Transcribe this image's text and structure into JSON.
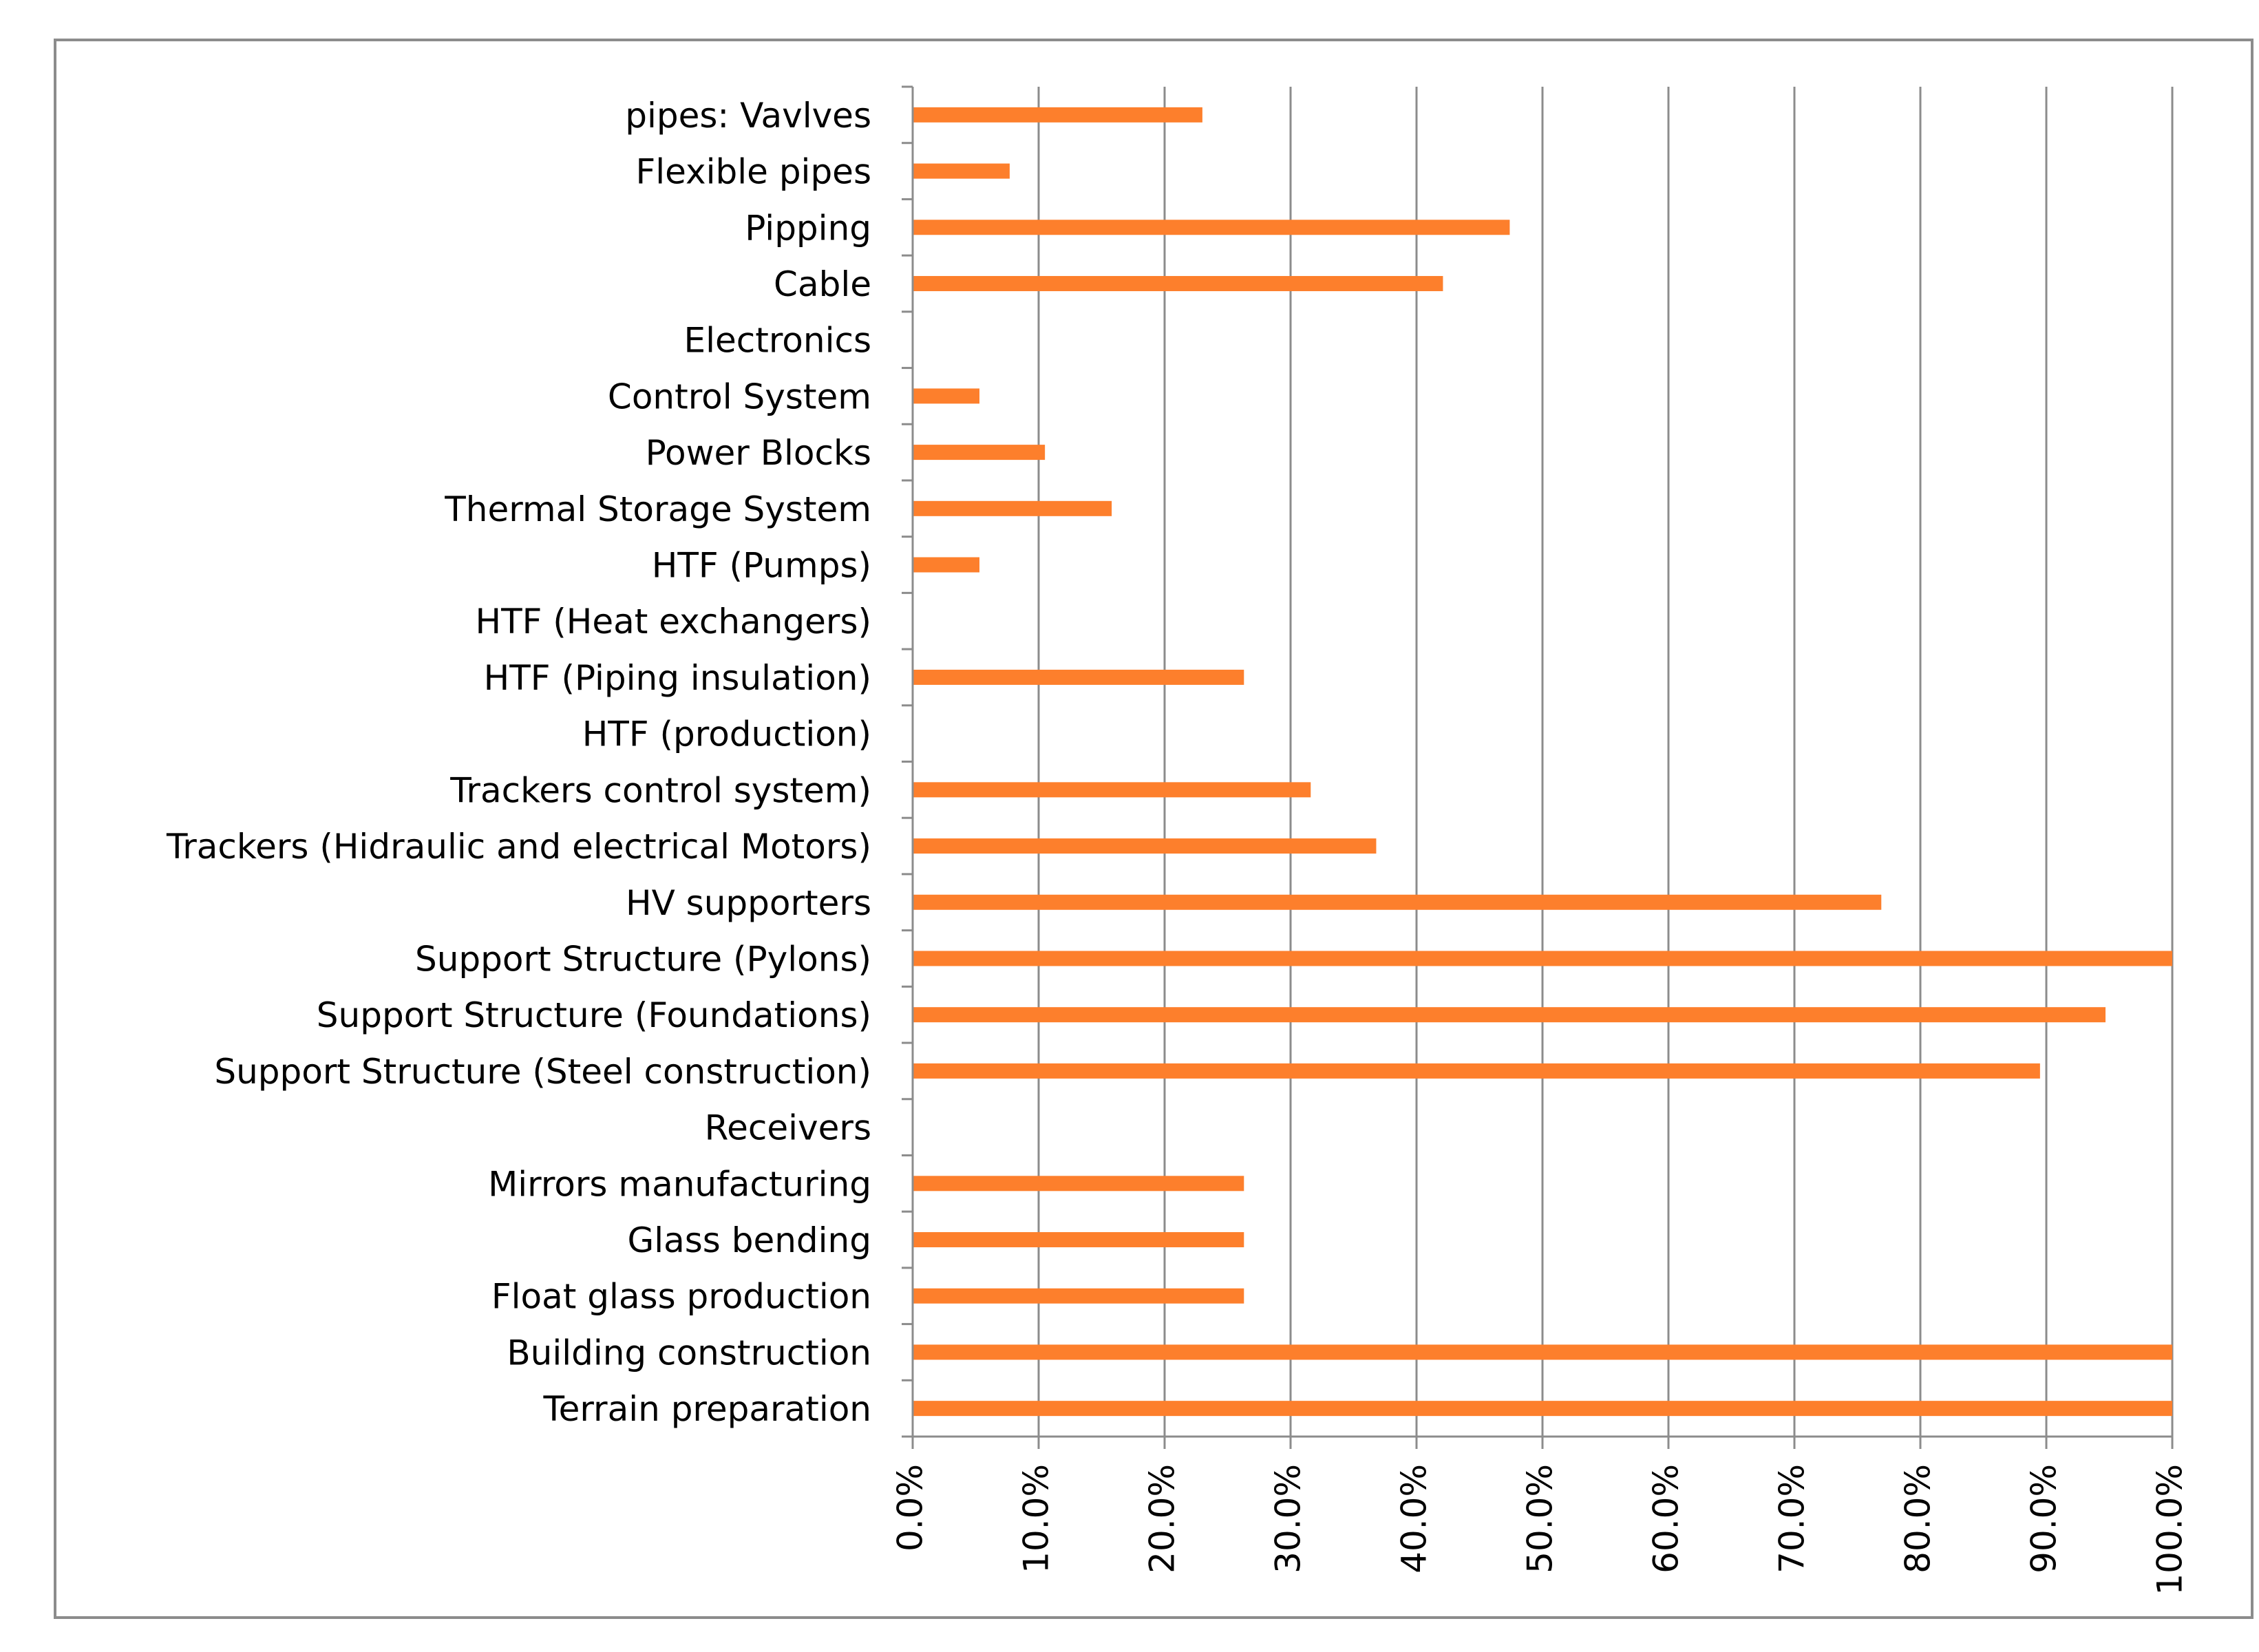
{
  "chart_data": {
    "type": "bar",
    "orientation": "horizontal",
    "title": "",
    "xlabel": "",
    "ylabel": "",
    "xlim": [
      0,
      100
    ],
    "grid": true,
    "legend": "none",
    "bar_color": "#fd7f2c",
    "grid_color": "#8c8c8c",
    "axis_color": "#8c8c8c",
    "categories": [
      "pipes: Vavlves",
      "Flexible pipes",
      "Pipping",
      "Cable",
      "Electronics",
      "Control System",
      "Power Blocks",
      "Thermal Storage System",
      "HTF (Pumps)",
      "HTF (Heat exchangers)",
      "HTF (Piping insulation)",
      "HTF (production)",
      "Trackers control system)",
      "Trackers (Hidraulic and electrical Motors)",
      "HV supporters",
      "Support Structure (Pylons)",
      "Support Structure (Foundations)",
      "Support Structure (Steel construction)",
      "Receivers",
      "Mirrors manufacturing",
      "Glass bending",
      "Float glass production",
      "Building construction",
      "Terrain preparation"
    ],
    "values": [
      23.0,
      7.7,
      47.4,
      42.1,
      0,
      5.3,
      10.5,
      15.8,
      5.3,
      0,
      26.3,
      0,
      31.6,
      36.8,
      76.9,
      100.0,
      94.7,
      89.5,
      0,
      26.3,
      26.3,
      26.3,
      100.0,
      100.0
    ],
    "x_ticks": [
      0,
      10,
      20,
      30,
      40,
      50,
      60,
      70,
      80,
      90,
      100
    ],
    "x_tick_labels": [
      "0.0%",
      "10.0%",
      "20.0%",
      "30.0%",
      "40.0%",
      "50.0%",
      "60.0%",
      "70.0%",
      "80.0%",
      "90.0%",
      "100.0%"
    ]
  }
}
